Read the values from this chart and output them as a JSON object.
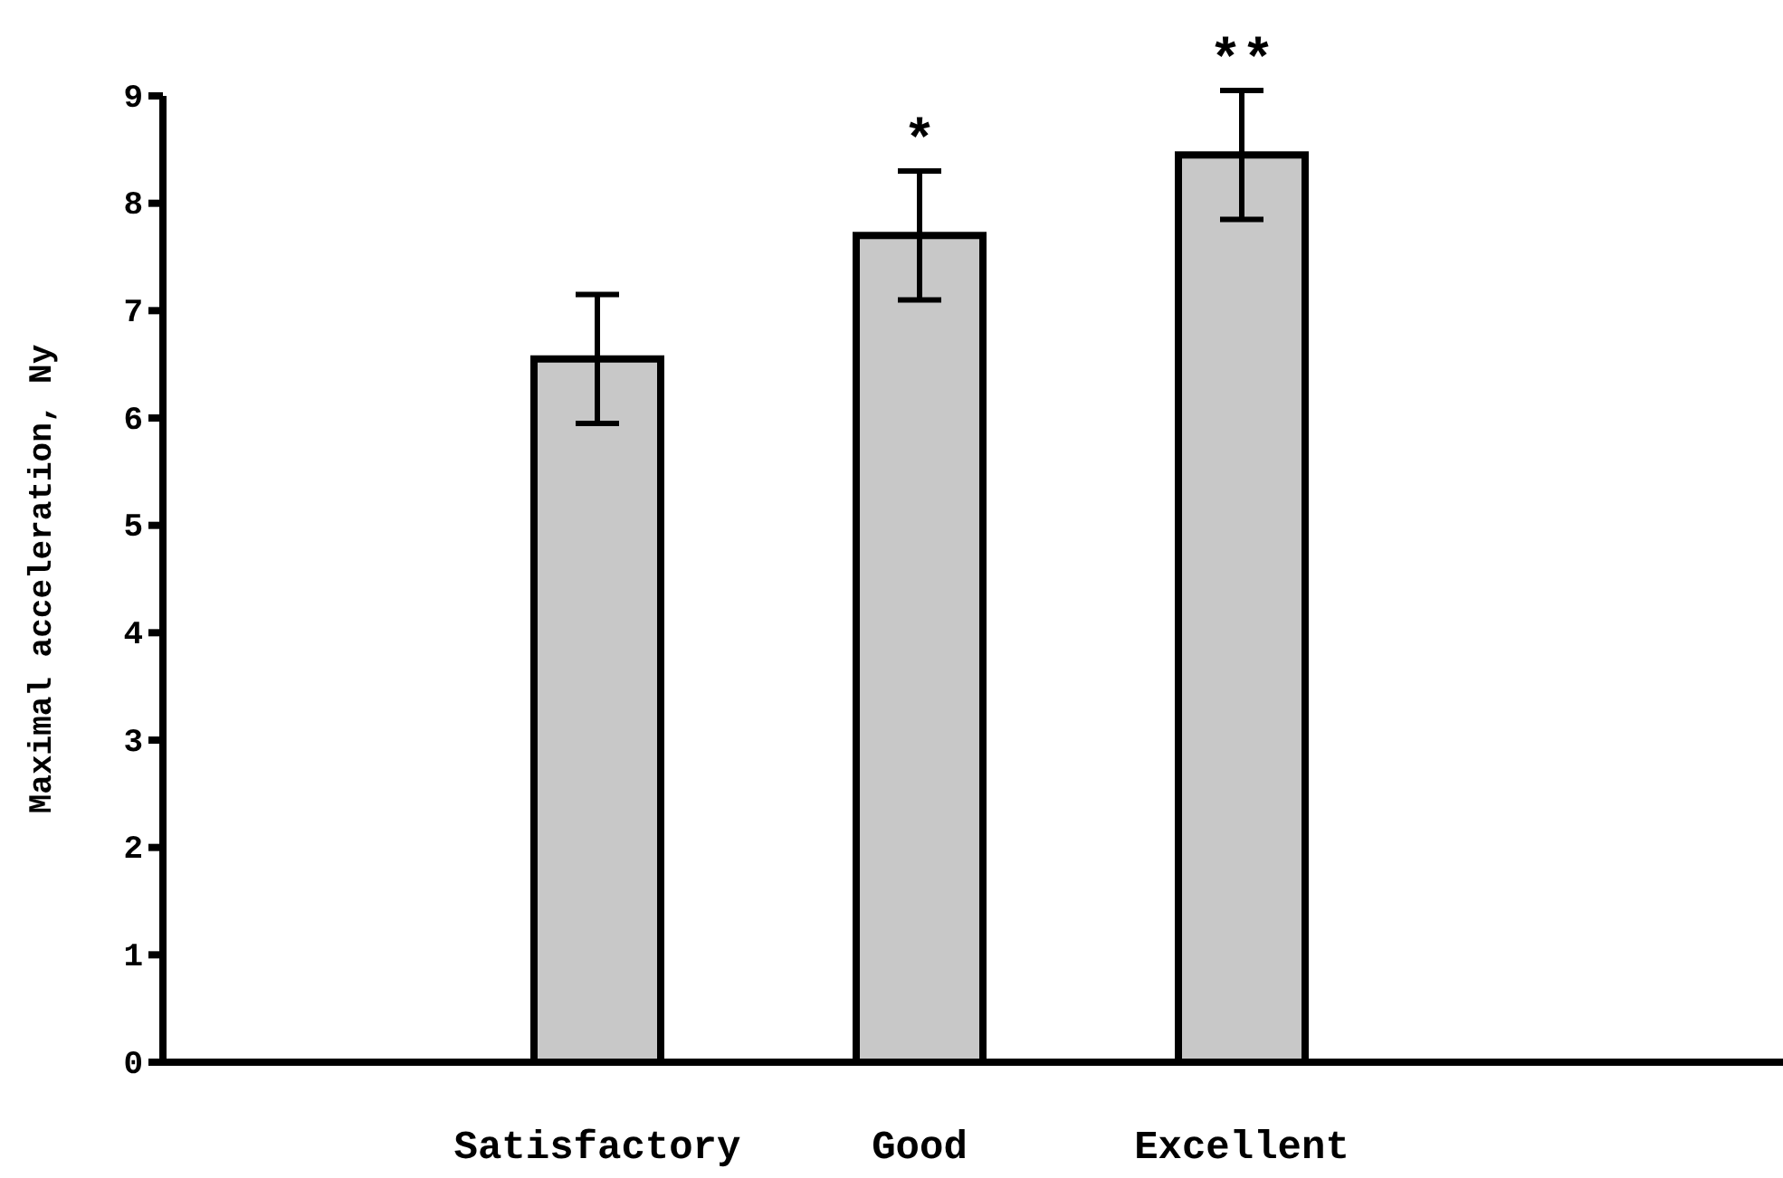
{
  "chart_data": {
    "type": "bar",
    "ylabel": "Maximal acceleration, Ny",
    "categories": [
      "Satisfactory",
      "Good",
      "Excellent"
    ],
    "values": [
      6.55,
      7.7,
      8.45
    ],
    "errors": [
      0.6,
      0.6,
      0.6
    ],
    "color": "#c8c8c8",
    "ylim": [
      0,
      9
    ],
    "yticks": [
      0,
      1,
      2,
      3,
      4,
      5,
      6,
      7,
      8,
      9
    ],
    "grid": false,
    "annotations": [
      {
        "text": "*",
        "x": "Good",
        "y": 8.3
      },
      {
        "text": "**",
        "x": "Excellent",
        "y": 9.05
      }
    ]
  }
}
